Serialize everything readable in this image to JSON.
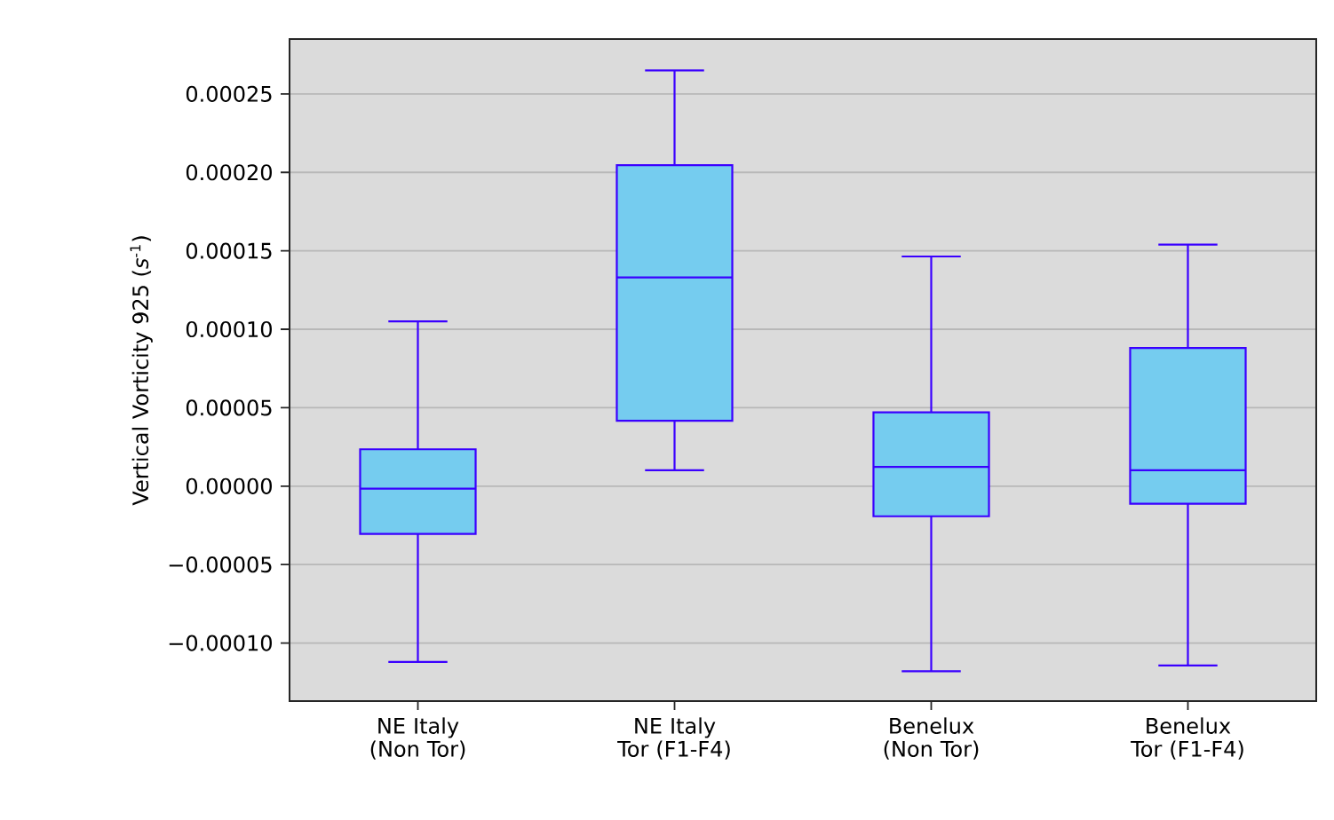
{
  "chart_data": {
    "type": "box",
    "ylabel": "Vertical Vorticity 925 (*s*$^{-1}$)",
    "categories": [
      "NE Italy (Non Tor)",
      "NE Italy Tor (F1-F4)",
      "Benelux (Non Tor)",
      "Benelux Tor (F1-F4)"
    ],
    "color": "#75ccef",
    "boxes": [
      {
        "low": -0.000112,
        "q1": -3.05e-05,
        "median": -1.6e-06,
        "q3": 2.35e-05,
        "high": 0.000105
      },
      {
        "low": 1.01e-05,
        "q1": 4.17e-05,
        "median": 0.000133,
        "q3": 0.0002046,
        "high": 0.000265
      },
      {
        "low": -0.000118,
        "q1": -1.92e-05,
        "median": 1.23e-05,
        "q3": 4.7e-05,
        "high": 0.0001464
      },
      {
        "low": -0.0001143,
        "q1": -1.12e-05,
        "median": 1.01e-05,
        "q3": 8.81e-05,
        "high": 0.000154
      }
    ],
    "ylim": [
      -0.000137,
      0.000285
    ],
    "yticks": [
      {
        "value": -0.0001,
        "label": "−0.00010"
      },
      {
        "value": -5e-05,
        "label": "−0.00005"
      },
      {
        "value": 0,
        "label": "0.00000"
      },
      {
        "value": 5e-05,
        "label": "0.00005"
      },
      {
        "value": 0.0001,
        "label": "0.00010"
      },
      {
        "value": 0.00015,
        "label": "0.00015"
      },
      {
        "value": 0.0002,
        "label": "0.00020"
      },
      {
        "value": 0.00025,
        "label": "0.00025"
      }
    ],
    "grid": "y"
  }
}
